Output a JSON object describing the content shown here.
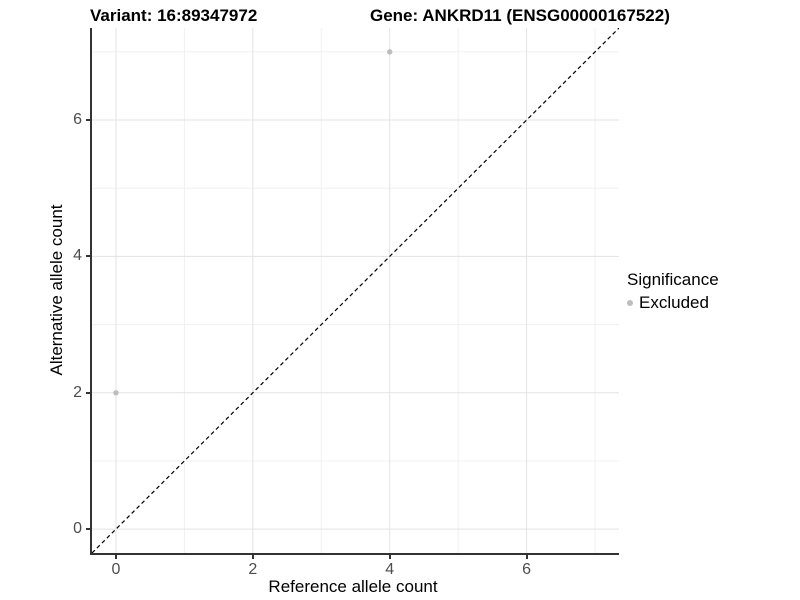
{
  "titles": {
    "left": "Variant: 16:89347972",
    "right": "Gene: ANKRD11 (ENSG00000167522)"
  },
  "chart_data": {
    "type": "scatter",
    "xlabel": "Reference allele count",
    "ylabel": "Alternative allele count",
    "xlim": [
      -0.35,
      7.35
    ],
    "ylim": [
      -0.35,
      7.35
    ],
    "x_ticks": [
      0,
      2,
      4,
      6
    ],
    "y_ticks": [
      0,
      2,
      4,
      6
    ],
    "minor_gridlines": [
      1,
      3,
      5,
      7
    ],
    "grid": true,
    "points": [
      {
        "x": 0,
        "y": 2,
        "significance": "Excluded"
      },
      {
        "x": 4,
        "y": 7,
        "significance": "Excluded"
      }
    ],
    "reference_line": {
      "slope": 1,
      "intercept": 0,
      "style": "dashed"
    },
    "legend": {
      "title": "Significance",
      "position": "right",
      "entries": [
        {
          "label": "Excluded",
          "color": "#bdbdbd"
        }
      ]
    }
  },
  "colors": {
    "point": "#bdbdbd",
    "axis_line": "#333333",
    "tick_text": "#4d4d4d",
    "grid_major": "#e3e3e3",
    "grid_minor": "#f0f0f0",
    "reference_line": "#000000"
  }
}
